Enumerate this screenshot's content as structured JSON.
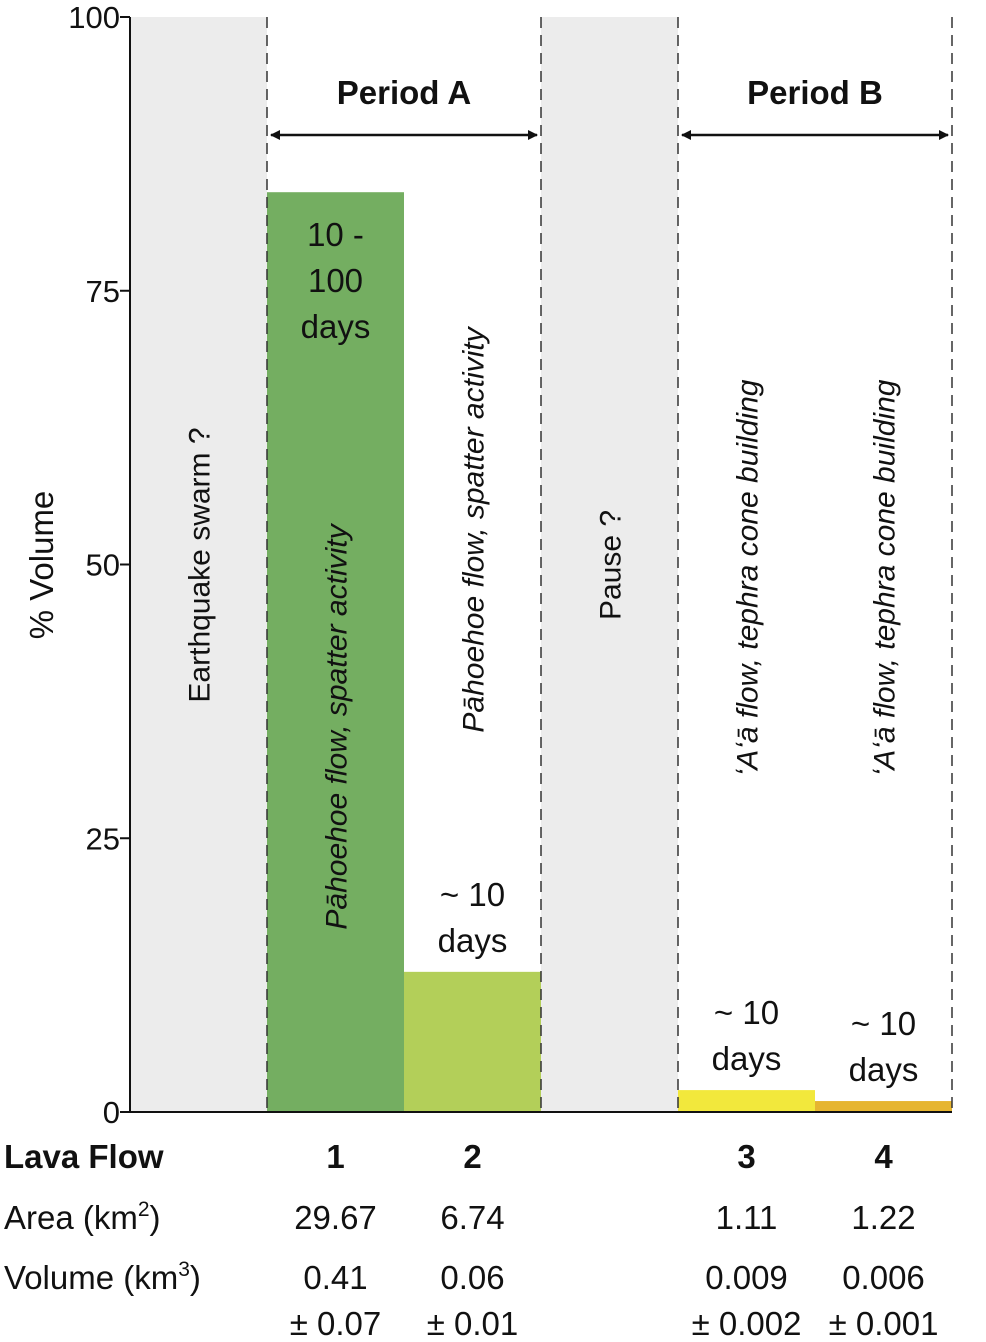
{
  "chart_data": {
    "type": "bar",
    "ylabel": "% Volume",
    "ylim": [
      0,
      100
    ],
    "yticks": [
      0,
      25,
      50,
      75,
      100
    ],
    "grid": false,
    "colors": {
      "gray": "#ececec",
      "flow1": "#74ae61",
      "flow2": "#b3cf59",
      "flow3": "#f2e83c",
      "flow4": "#e6b530"
    },
    "columns": [
      {
        "kind": "phase",
        "text": "Earthquake swarm ?"
      },
      {
        "kind": "flow",
        "flow": "1",
        "value": 84,
        "color_key": "flow1",
        "duration": [
          "10 -",
          "100",
          "days"
        ],
        "text": "Pāhoehoe flow, spatter activity"
      },
      {
        "kind": "flow",
        "flow": "2",
        "value": 12.8,
        "color_key": "flow2",
        "duration": [
          "~ 10",
          "days"
        ],
        "text": "Pāhoehoe flow, spatter activity"
      },
      {
        "kind": "phase",
        "text": "Pause ?"
      },
      {
        "kind": "flow",
        "flow": "3",
        "value": 2.0,
        "color_key": "flow3",
        "duration": [
          "~ 10",
          "days"
        ],
        "text": "ʻAʻā flow, tephra cone building"
      },
      {
        "kind": "flow",
        "flow": "4",
        "value": 1.0,
        "color_key": "flow4",
        "duration": [
          "~ 10",
          "days"
        ],
        "text": "ʻAʻā flow, tephra cone building"
      }
    ],
    "periods": [
      {
        "label": "Period A",
        "from_column": 1,
        "to_column": 2
      },
      {
        "label": "Period B",
        "from_column": 4,
        "to_column": 5
      }
    ]
  },
  "table": {
    "row_labels": {
      "lava_flow": "Lava Flow",
      "area": "Area (km",
      "area_sup": "2",
      "area_end": ")",
      "volume": "Volume (km",
      "volume_sup": "3",
      "volume_end": ")"
    },
    "flows": [
      {
        "id": "1",
        "area": "29.67",
        "volume": "0.41",
        "error": "± 0.07"
      },
      {
        "id": "2",
        "area": "6.74",
        "volume": "0.06",
        "error": "± 0.01"
      },
      {
        "id": "3",
        "area": "1.11",
        "volume": "0.009",
        "error": "± 0.002"
      },
      {
        "id": "4",
        "area": "1.22",
        "volume": "0.006",
        "error": "± 0.001"
      }
    ]
  }
}
